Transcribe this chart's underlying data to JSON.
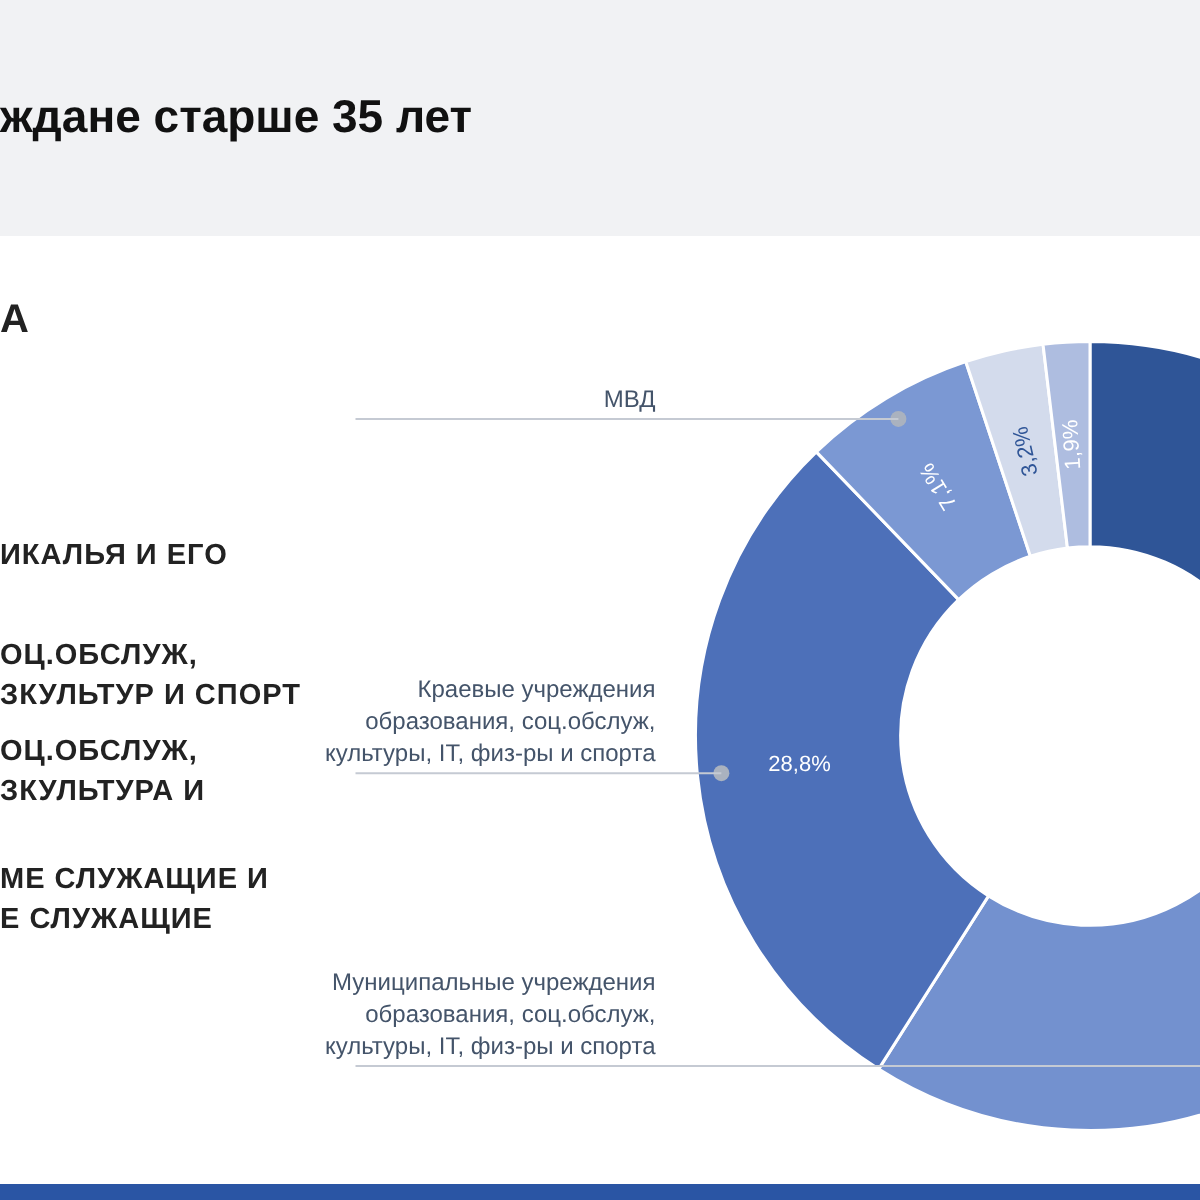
{
  "chart_data": {
    "type": "donut",
    "title": "ждане старше 35 лет",
    "categories": [
      null,
      "Муниципальные учреждения образования, соц.обслуж, культуры, IT, физ-ры и спорта",
      "Краевые учреждения образования, соц.обслуж, культуры, IT, физ-ры и спорта",
      "МВД",
      null,
      null
    ],
    "values": [
      26,
      33,
      28.8,
      7.1,
      3.2,
      1.9
    ],
    "colors": [
      "#2f5597",
      "#7391cf",
      "#4d70b9",
      "#7b98d3",
      "#d3dbec",
      "#aebde0"
    ],
    "value_labels": [
      null,
      null,
      "28,8%",
      "7,1%",
      "3,2%",
      "1,9%"
    ],
    "legend": false,
    "annotations": [
      "А",
      "ИКАЛЬЯ И ЕГО",
      "ОЦ.ОБСЛУЖ,\nЗКУЛЬТУР И СПОРТ",
      "ОЦ.ОБСЛУЖ,\nЗКУЛЬТУРА И",
      "МЕ СЛУЖАЩИЕ И\nЕ СЛУЖАЩИЕ"
    ]
  }
}
